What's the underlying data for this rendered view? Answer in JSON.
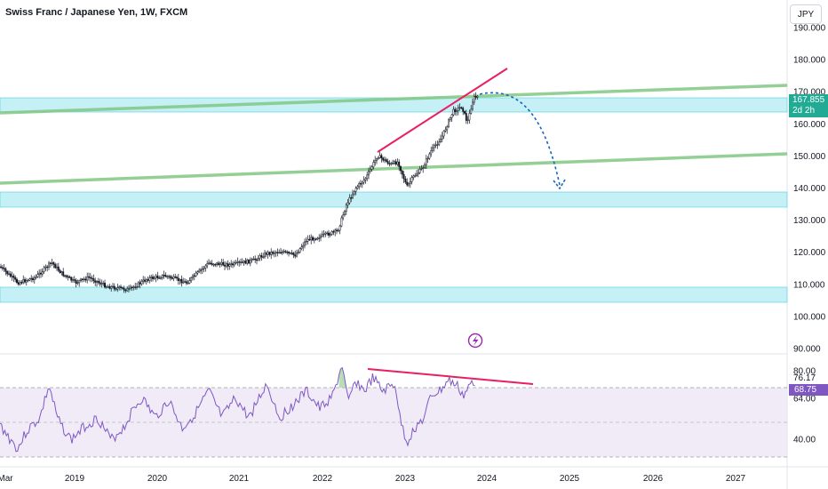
{
  "header": {
    "title": "Swiss Franc / Japanese Yen, 1W, FXCM"
  },
  "currency_button": {
    "label": "JPY"
  },
  "price_axis": {
    "ticks": [
      "190.000",
      "180.000",
      "170.000",
      "160.000",
      "150.000",
      "140.000",
      "130.000",
      "120.000",
      "110.000",
      "100.000",
      "90.000"
    ],
    "tick_values": [
      190,
      180,
      170,
      160,
      150,
      140,
      130,
      120,
      110,
      100,
      90
    ]
  },
  "last_price": {
    "value": "167.855",
    "countdown": "2d 2h"
  },
  "rsi_axis": {
    "ticks": [
      "80.00",
      "76.17",
      "64.00",
      "40.00"
    ],
    "tick_values": [
      80,
      76.17,
      64,
      40
    ]
  },
  "rsi_last": {
    "value": "68.75"
  },
  "time_axis": {
    "labels": [
      "Mar",
      "2019",
      "2020",
      "2021",
      "2022",
      "2023",
      "2024",
      "2025",
      "2026",
      "2027"
    ]
  },
  "colors": {
    "candle": "#131722",
    "zone_fill": "#b2ebf2",
    "trend_green": "#81c784",
    "trend_red": "#e91e63",
    "forecast_arrow": "#1565c0",
    "rsi_line": "#7e57c2",
    "rsi_band": "#ede7f6",
    "price_tag": "#22ab94",
    "rsi_tag": "#7e57c2"
  },
  "icons": {
    "flash_marker": "lightning-icon"
  }
}
